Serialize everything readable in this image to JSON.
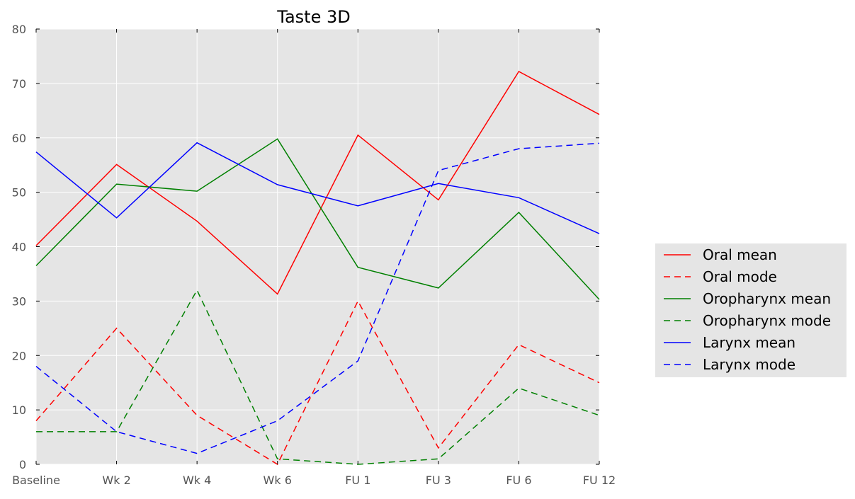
{
  "chart_data": {
    "type": "line",
    "title": "Taste 3D",
    "xlabel": "",
    "ylabel": "",
    "categories": [
      "Baseline",
      "Wk 2",
      "Wk 4",
      "Wk 6",
      "FU 1",
      "FU 3",
      "FU 6",
      "FU 12"
    ],
    "ylim": [
      0,
      80
    ],
    "yticks": [
      0,
      10,
      20,
      30,
      40,
      50,
      60,
      70,
      80
    ],
    "grid": true,
    "legend_position": "right, outside the plot",
    "series": [
      {
        "name": "Oral mean",
        "color": "#ff0000",
        "style": "solid",
        "values": [
          40.2,
          55.1,
          44.7,
          31.3,
          60.5,
          48.6,
          72.2,
          64.3
        ]
      },
      {
        "name": "Oral mode",
        "color": "#ff0000",
        "style": "dashed",
        "values": [
          8,
          25,
          9,
          0,
          30,
          3,
          22,
          15
        ]
      },
      {
        "name": "Oropharynx mean",
        "color": "#008000",
        "style": "solid",
        "values": [
          36.5,
          51.5,
          50.2,
          59.8,
          36.2,
          32.4,
          46.3,
          30.3
        ]
      },
      {
        "name": "Oropharynx mode",
        "color": "#008000",
        "style": "dashed",
        "values": [
          6,
          6,
          32,
          1,
          0,
          1,
          14,
          9
        ]
      },
      {
        "name": "Larynx mean",
        "color": "#0000ff",
        "style": "solid",
        "values": [
          57.4,
          45.3,
          59.1,
          51.4,
          47.5,
          51.6,
          49.0,
          42.4
        ]
      },
      {
        "name": "Larynx mode",
        "color": "#0000ff",
        "style": "dashed",
        "values": [
          18,
          6,
          2,
          8,
          19,
          54,
          58,
          59
        ]
      }
    ],
    "colors": {
      "plot_background": "#e5e5e5",
      "grid": "#ffffff",
      "legend_background": "#e5e5e5",
      "tick_label": "#555555"
    }
  }
}
